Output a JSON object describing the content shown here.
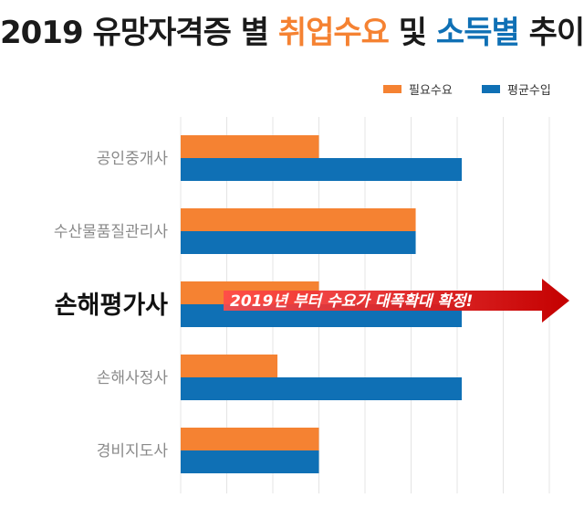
{
  "title": {
    "part1": "2019 유망자격증 별",
    "accent1": "취업수요",
    "mid": "및",
    "accent2": "소득별",
    "part2": "추이"
  },
  "chart_data": {
    "type": "bar",
    "orientation": "horizontal",
    "categories": [
      "공인중개사",
      "수산물품질관리사",
      "손해평가사",
      "손해사정사",
      "경비지도사"
    ],
    "highlight_category": "손해평가사",
    "series": [
      {
        "name": "필요수요",
        "color": "#f58232",
        "values": [
          3.0,
          5.1,
          3.0,
          2.1,
          3.0
        ]
      },
      {
        "name": "평균수입",
        "color": "#0f70b5",
        "values": [
          6.1,
          5.1,
          6.1,
          6.1,
          3.0
        ]
      }
    ],
    "xlim": [
      0,
      8
    ],
    "grid": true,
    "legend_position": "top-right",
    "annotation": {
      "text": "2019년 부터 수요가 대폭확대 확정!",
      "category": "손해평가사"
    }
  }
}
